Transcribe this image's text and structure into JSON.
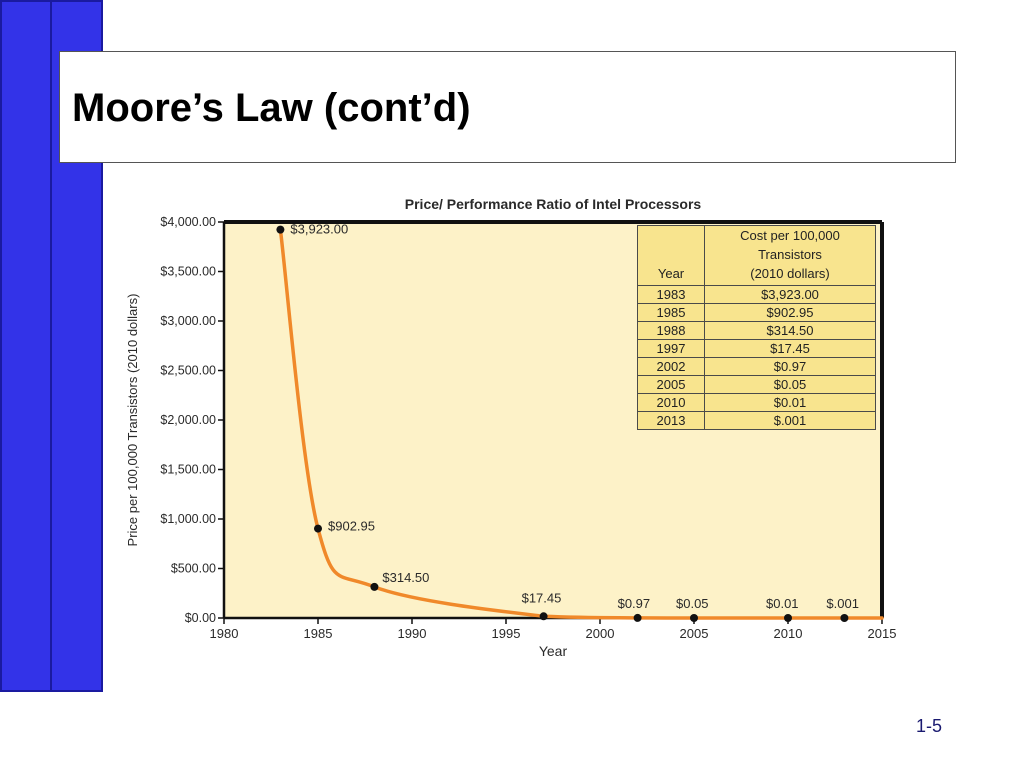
{
  "slide": {
    "title": "Moore’s Law (cont’d)",
    "number": "1-5"
  },
  "colors": {
    "accent_bar": "#3333e8",
    "plot_background": "#fdf2c8",
    "curve": "#f0892a",
    "table_background": "#f8e48e"
  },
  "chart_data": {
    "type": "line",
    "title": "Price/ Performance Ratio of Intel Processors",
    "xlabel": "Year",
    "ylabel": "Price per 100,000 Transistors (2010 dollars)",
    "xlim": [
      1980,
      2015
    ],
    "ylim": [
      0,
      4000
    ],
    "x_ticks": [
      1980,
      1985,
      1990,
      1995,
      2000,
      2005,
      2010,
      2015
    ],
    "x_tick_labels": [
      "1980",
      "1985",
      "1990",
      "1995",
      "2000",
      "2005",
      "2010",
      "2015"
    ],
    "y_ticks": [
      0,
      500,
      1000,
      1500,
      2000,
      2500,
      3000,
      3500,
      4000
    ],
    "y_tick_labels": [
      "$0.00",
      "$500.00",
      "$1,000.00",
      "$1,500.00",
      "$2,000.00",
      "$2,500.00",
      "$3,000.00",
      "$3,500.00",
      "$4,000.00"
    ],
    "grid": false,
    "points": [
      {
        "x": 1983,
        "y": 3923.0,
        "label": "$3,923.00"
      },
      {
        "x": 1985,
        "y": 902.95,
        "label": "$902.95"
      },
      {
        "x": 1988,
        "y": 314.5,
        "label": "$314.50"
      },
      {
        "x": 1997,
        "y": 17.45,
        "label": "$17.45"
      },
      {
        "x": 2002,
        "y": 0.97,
        "label": "$0.97"
      },
      {
        "x": 2005,
        "y": 0.05,
        "label": "$0.05"
      },
      {
        "x": 2010,
        "y": 0.01,
        "label": "$0.01"
      },
      {
        "x": 2013,
        "y": 0.001,
        "label": "$.001"
      }
    ]
  },
  "table": {
    "headers": {
      "year": "Year",
      "cost_line1": "Cost per 100,000",
      "cost_line2": "Transistors",
      "cost_line3": "(2010 dollars)"
    },
    "rows": [
      {
        "year": "1983",
        "cost": "$3,923.00"
      },
      {
        "year": "1985",
        "cost": "$902.95"
      },
      {
        "year": "1988",
        "cost": "$314.50"
      },
      {
        "year": "1997",
        "cost": "$17.45"
      },
      {
        "year": "2002",
        "cost": "$0.97"
      },
      {
        "year": "2005",
        "cost": "$0.05"
      },
      {
        "year": "2010",
        "cost": "$0.01"
      },
      {
        "year": "2013",
        "cost": "$.001"
      }
    ]
  }
}
